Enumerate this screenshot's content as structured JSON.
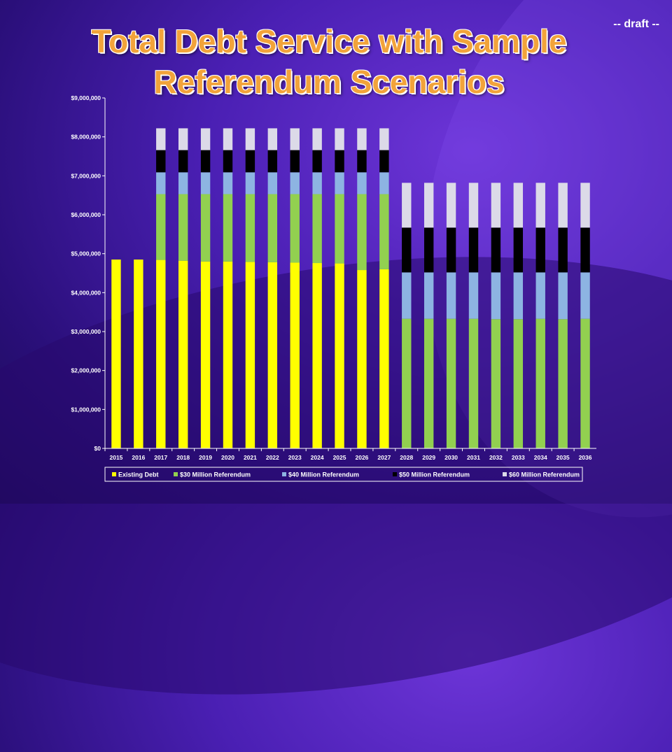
{
  "draft_label": "-- draft --",
  "chart_data": {
    "type": "bar",
    "stacked": true,
    "title": "Total Debt Service with Sample Referendum Scenarios",
    "xlabel": "",
    "ylabel": "",
    "ylim": [
      0,
      9000000
    ],
    "y_ticks": [
      "$0",
      "$1,000,000",
      "$2,000,000",
      "$3,000,000",
      "$4,000,000",
      "$5,000,000",
      "$6,000,000",
      "$7,000,000",
      "$8,000,000",
      "$9,000,000"
    ],
    "grid": false,
    "legend_position": "bottom",
    "categories": [
      "2015",
      "2016",
      "2017",
      "2018",
      "2019",
      "2020",
      "2021",
      "2022",
      "2023",
      "2024",
      "2025",
      "2026",
      "2027",
      "2028",
      "2029",
      "2030",
      "2031",
      "2032",
      "2033",
      "2034",
      "2035",
      "2036"
    ],
    "series": [
      {
        "name": "Existing Debt",
        "color": "#ffff00",
        "values": [
          4850000,
          4850000,
          4840000,
          4820000,
          4800000,
          4800000,
          4790000,
          4780000,
          4770000,
          4760000,
          4750000,
          4580000,
          4600000,
          0,
          0,
          0,
          0,
          0,
          0,
          0,
          0,
          0
        ]
      },
      {
        "name": "$30 Million Referendum",
        "color": "#92d050",
        "values": [
          0,
          0,
          1690000,
          1710000,
          1730000,
          1730000,
          1740000,
          1750000,
          1760000,
          1770000,
          1780000,
          1950000,
          1930000,
          3330000,
          3330000,
          3330000,
          3330000,
          3320000,
          3320000,
          3330000,
          3320000,
          3330000
        ]
      },
      {
        "name": "$40 Million Referendum",
        "color": "#8db4e2",
        "values": [
          0,
          0,
          560000,
          560000,
          560000,
          560000,
          560000,
          560000,
          560000,
          560000,
          560000,
          560000,
          560000,
          1190000,
          1190000,
          1190000,
          1190000,
          1200000,
          1200000,
          1190000,
          1200000,
          1190000
        ]
      },
      {
        "name": "$50 Million Referendum",
        "color": "#000000",
        "values": [
          0,
          0,
          570000,
          570000,
          570000,
          570000,
          570000,
          570000,
          570000,
          570000,
          570000,
          570000,
          570000,
          1150000,
          1150000,
          1150000,
          1150000,
          1150000,
          1150000,
          1150000,
          1150000,
          1150000
        ]
      },
      {
        "name": "$60 Million Referendum",
        "color": "#dcdae8",
        "values": [
          0,
          0,
          560000,
          560000,
          560000,
          560000,
          560000,
          560000,
          560000,
          560000,
          560000,
          560000,
          560000,
          1150000,
          1150000,
          1150000,
          1150000,
          1150000,
          1150000,
          1150000,
          1150000,
          1150000
        ]
      }
    ]
  }
}
